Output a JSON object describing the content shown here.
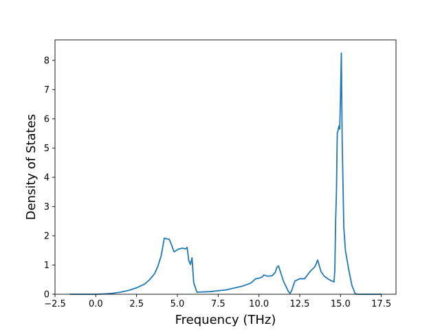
{
  "chart_data": {
    "type": "line",
    "title": "",
    "xlabel": "Frequency (THz)",
    "ylabel": "Density of States",
    "xlim": [
      -2.5,
      18.4
    ],
    "ylim": [
      0,
      8.7
    ],
    "xticks": [
      -2.5,
      0.0,
      2.5,
      5.0,
      7.5,
      10.0,
      12.5,
      15.0,
      17.5
    ],
    "xtick_labels": [
      "−2.5",
      "0.0",
      "2.5",
      "5.0",
      "7.5",
      "10.0",
      "12.5",
      "15.0",
      "17.5"
    ],
    "yticks": [
      0,
      1,
      2,
      3,
      4,
      5,
      6,
      7,
      8
    ],
    "ytick_labels": [
      "0",
      "1",
      "2",
      "3",
      "4",
      "5",
      "6",
      "7",
      "8"
    ],
    "grid": false,
    "line_color": "#1f77b4",
    "series": [
      {
        "x": [
          -1.6,
          -1.0,
          0.0,
          0.5,
          1.0,
          1.5,
          2.0,
          2.5,
          3.0,
          3.3,
          3.6,
          3.8,
          4.0,
          4.1,
          4.2,
          4.3,
          4.5,
          4.6,
          4.8,
          5.0,
          5.1,
          5.2,
          5.3,
          5.5,
          5.6,
          5.7,
          5.8,
          5.9,
          6.0,
          6.2,
          7.0,
          8.0,
          9.0,
          9.5,
          9.8,
          10.0,
          10.2,
          10.3,
          10.5,
          10.8,
          11.0,
          11.1,
          11.2,
          11.5,
          11.8,
          11.9,
          12.0,
          12.2,
          12.5,
          12.8,
          13.0,
          13.2,
          13.4,
          13.45,
          13.6,
          13.8,
          14.0,
          14.3,
          14.6,
          14.65,
          14.7,
          14.75,
          14.8,
          14.85,
          14.9,
          14.95,
          15.0,
          15.05,
          15.1,
          15.15,
          15.2,
          15.3,
          15.5,
          15.7,
          15.9,
          16.0,
          16.5,
          17.5
        ],
        "y": [
          0.0,
          0.0,
          0.0,
          0.01,
          0.03,
          0.07,
          0.13,
          0.22,
          0.35,
          0.5,
          0.7,
          0.95,
          1.3,
          1.6,
          1.92,
          1.9,
          1.88,
          1.75,
          1.45,
          1.52,
          1.55,
          1.56,
          1.58,
          1.55,
          1.6,
          1.15,
          1.02,
          1.25,
          0.4,
          0.07,
          0.09,
          0.15,
          0.28,
          0.38,
          0.53,
          0.55,
          0.59,
          0.66,
          0.62,
          0.63,
          0.75,
          0.92,
          0.97,
          0.45,
          0.1,
          0.03,
          0.12,
          0.45,
          0.53,
          0.53,
          0.68,
          0.82,
          0.92,
          0.97,
          1.17,
          0.78,
          0.62,
          0.5,
          0.42,
          0.8,
          2.5,
          3.5,
          5.5,
          5.6,
          5.75,
          5.65,
          6.8,
          8.25,
          5.3,
          3.8,
          2.3,
          1.5,
          0.85,
          0.3,
          0.02,
          0.0,
          0.0,
          0.0
        ]
      }
    ]
  }
}
